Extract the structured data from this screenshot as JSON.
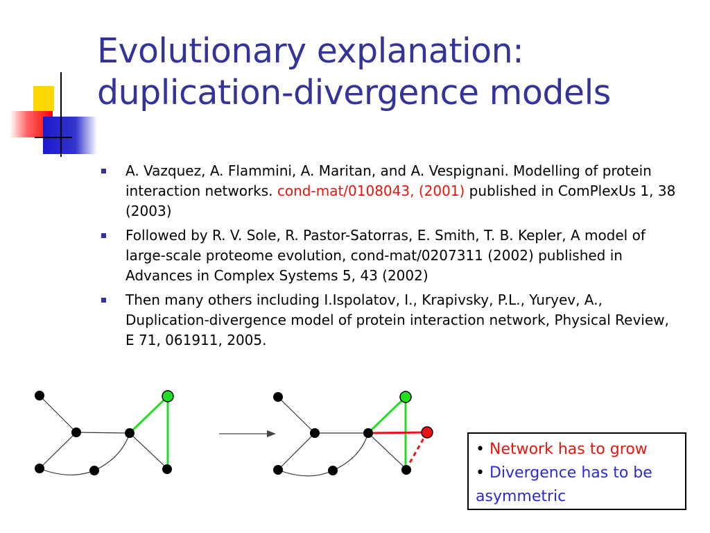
{
  "slide": {
    "title_line1": "Evolutionary explanation:",
    "title_line2": "duplication-divergence models",
    "bullets": [
      {
        "text_before": "A. Vazquez, A. Flammini, A. Maritan, and A. Vespignani. Modelling of protein interaction networks. ",
        "red_text": "cond-mat/0108043, (2001)",
        "text_after": " published in ComPlexUs 1, 38 (2003)"
      },
      {
        "text": "Followed by R. V. Sole, R. Pastor-Satorras, E. Smith, T. B. Kepler, A model of large-scale proteome evolution, cond-mat/0207311 (2002) published in Advances in Complex Systems 5, 43 (2002)"
      },
      {
        "text": "Then many others including I.Ispolatov, I., Krapivsky, P.L., Yuryev, A., Duplication-divergence model of protein interaction network, Physical Review, E 71, 061911, 2005."
      }
    ],
    "callout": {
      "bullet_symbol": "•",
      "line1": "Network has to grow",
      "line2": "Divergence has to be",
      "line3": "asymmetric"
    },
    "colors": {
      "title": "#33339a",
      "highlight_red": "#e6150c",
      "node_green": "#22dd22",
      "node_red": "#ee1111",
      "callout_blue": "#2a2ad6"
    }
  }
}
